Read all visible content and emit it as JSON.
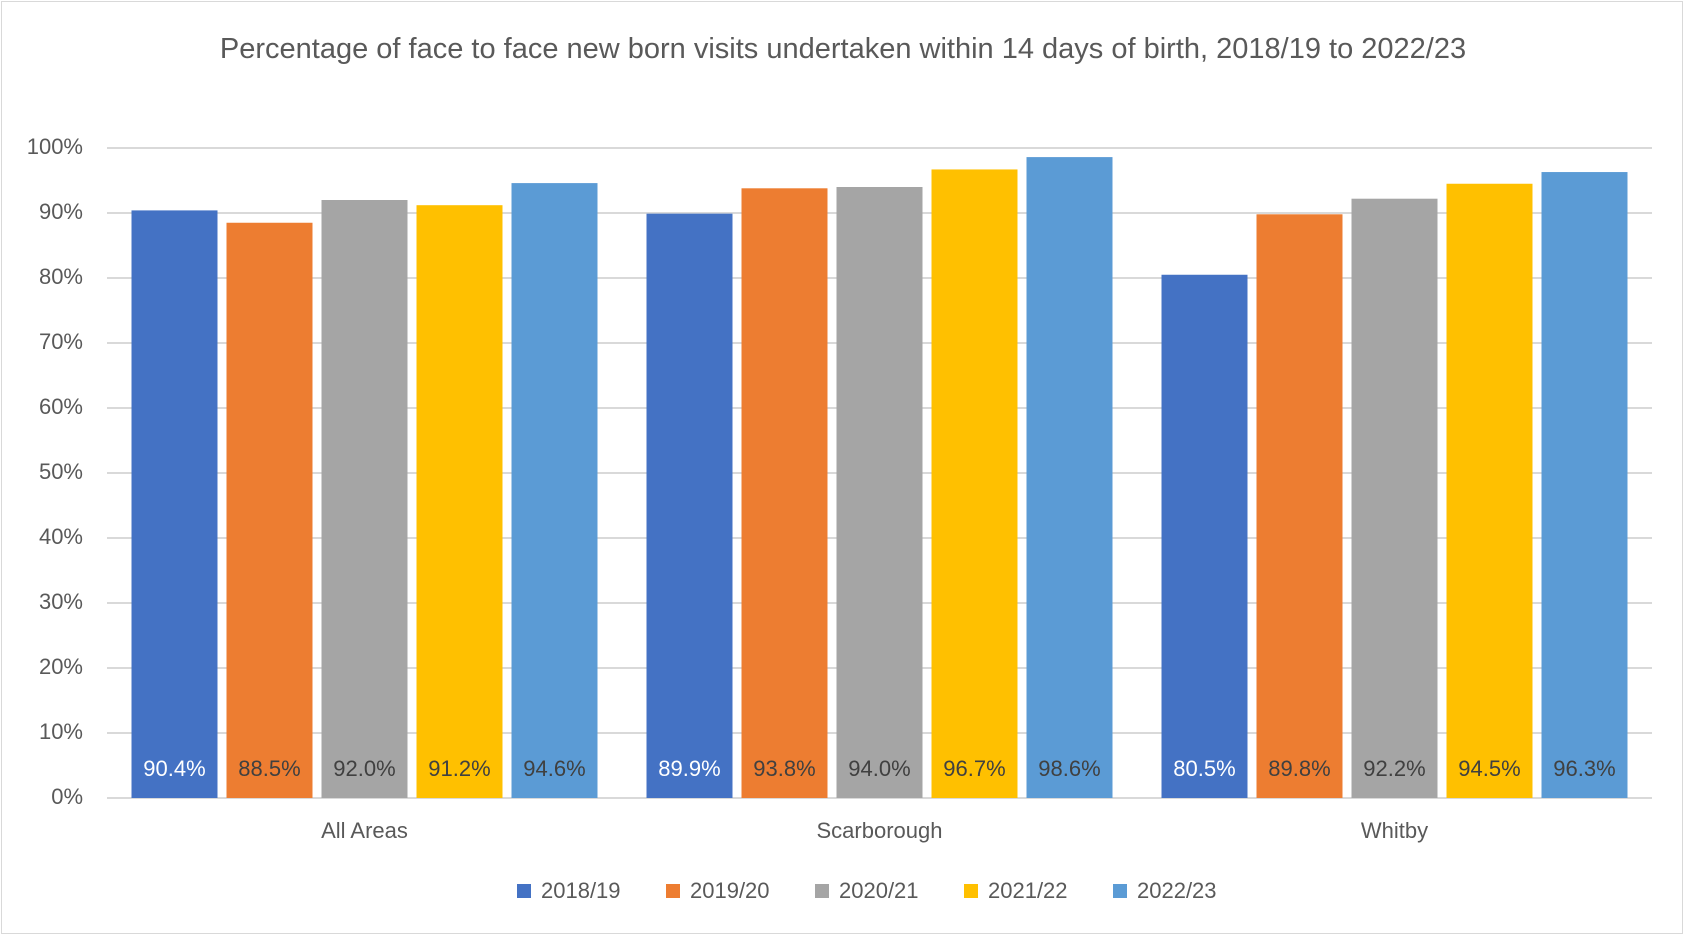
{
  "chart_data": {
    "type": "bar",
    "title": "Percentage of face to face new born visits undertaken within 14 days of birth, 2018/19 to 2022/23",
    "categories": [
      "All Areas",
      "Scarborough",
      "Whitby"
    ],
    "series": [
      {
        "name": "2018/19",
        "color": "#4472c4",
        "values": [
          90.4,
          89.9,
          80.5
        ],
        "value_labels": [
          "90.4%",
          "89.9%",
          "80.5%"
        ]
      },
      {
        "name": "2019/20",
        "color": "#ed7d31",
        "values": [
          88.5,
          93.8,
          89.8
        ],
        "value_labels": [
          "88.5%",
          "93.8%",
          "89.8%"
        ]
      },
      {
        "name": "2020/21",
        "color": "#a5a5a5",
        "values": [
          92.0,
          94.0,
          92.2
        ],
        "value_labels": [
          "92.0%",
          "94.0%",
          "92.2%"
        ]
      },
      {
        "name": "2021/22",
        "color": "#ffc000",
        "values": [
          91.2,
          96.7,
          94.5
        ],
        "value_labels": [
          "91.2%",
          "96.7%",
          "94.5%"
        ]
      },
      {
        "name": "2022/23",
        "color": "#5b9bd5",
        "values": [
          94.6,
          98.6,
          96.3
        ],
        "value_labels": [
          "94.6%",
          "98.6%",
          "96.3%"
        ]
      }
    ],
    "ylim": [
      0,
      100
    ],
    "yticks": [
      {
        "value": 0,
        "label": "0%"
      },
      {
        "value": 10,
        "label": "10%"
      },
      {
        "value": 20,
        "label": "20%"
      },
      {
        "value": 30,
        "label": "30%"
      },
      {
        "value": 40,
        "label": "40%"
      },
      {
        "value": 50,
        "label": "50%"
      },
      {
        "value": 60,
        "label": "60%"
      },
      {
        "value": 70,
        "label": "70%"
      },
      {
        "value": 80,
        "label": "80%"
      },
      {
        "value": 90,
        "label": "90%"
      },
      {
        "value": 100,
        "label": "100%"
      }
    ],
    "grid": true,
    "legend": "bottom"
  }
}
